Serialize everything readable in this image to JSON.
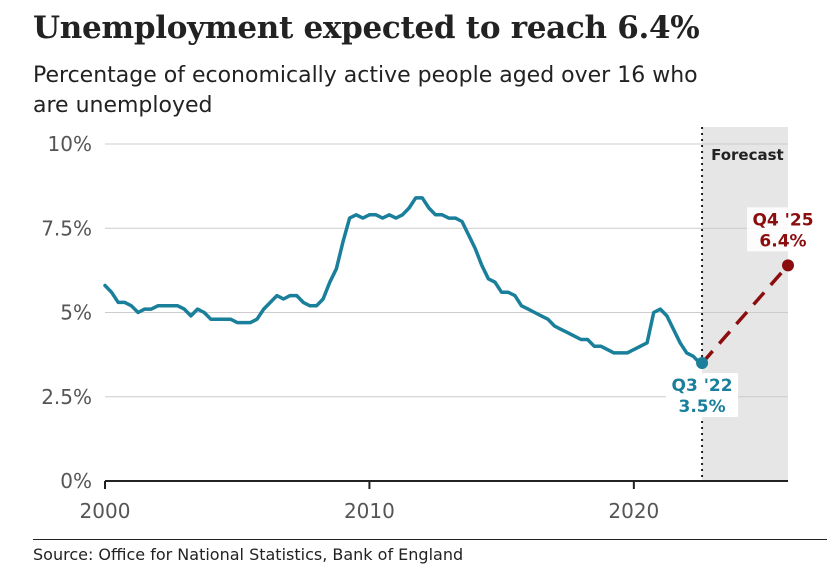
{
  "title": "Unemployment expected to reach 6.4%",
  "subtitle": "Percentage of economically active people aged over 16 who are unemployed",
  "source": "Source: Office for National Statistics, Bank of England",
  "colors": {
    "actual": "#1a7f9a",
    "forecast": "#8b0d0d",
    "forecast_shade": "#e6e6e6",
    "grid": "#cccccc",
    "axis": "#222222"
  },
  "chart_data": {
    "type": "line",
    "title": "Unemployment expected to reach 6.4%",
    "ylabel": "",
    "xlabel": "",
    "xlim": [
      2000,
      2025.83
    ],
    "ylim": [
      0,
      10
    ],
    "y_ticks": [
      {
        "value": 0,
        "label": "0%"
      },
      {
        "value": 2.5,
        "label": "2.5%"
      },
      {
        "value": 5,
        "label": "5%"
      },
      {
        "value": 7.5,
        "label": "7.5%"
      },
      {
        "value": 10,
        "label": "10%"
      }
    ],
    "x_ticks": [
      {
        "value": 2000,
        "label": "2000"
      },
      {
        "value": 2010,
        "label": "2010"
      },
      {
        "value": 2020,
        "label": "2020"
      }
    ],
    "grid": true,
    "forecast_region": {
      "start": 2022.58,
      "end": 2025.83,
      "label": "Forecast"
    },
    "series": [
      {
        "kind": "actual",
        "color": "#1a7f9a",
        "x": [
          2000.0,
          2000.25,
          2000.5,
          2000.75,
          2001.0,
          2001.25,
          2001.5,
          2001.75,
          2002.0,
          2002.25,
          2002.5,
          2002.75,
          2003.0,
          2003.25,
          2003.5,
          2003.75,
          2004.0,
          2004.25,
          2004.5,
          2004.75,
          2005.0,
          2005.25,
          2005.5,
          2005.75,
          2006.0,
          2006.25,
          2006.5,
          2006.75,
          2007.0,
          2007.25,
          2007.5,
          2007.75,
          2008.0,
          2008.25,
          2008.5,
          2008.75,
          2009.0,
          2009.25,
          2009.5,
          2009.75,
          2010.0,
          2010.25,
          2010.5,
          2010.75,
          2011.0,
          2011.25,
          2011.5,
          2011.75,
          2012.0,
          2012.25,
          2012.5,
          2012.75,
          2013.0,
          2013.25,
          2013.5,
          2013.75,
          2014.0,
          2014.25,
          2014.5,
          2014.75,
          2015.0,
          2015.25,
          2015.5,
          2015.75,
          2016.0,
          2016.25,
          2016.5,
          2016.75,
          2017.0,
          2017.25,
          2017.5,
          2017.75,
          2018.0,
          2018.25,
          2018.5,
          2018.75,
          2019.0,
          2019.25,
          2019.5,
          2019.75,
          2020.0,
          2020.25,
          2020.5,
          2020.75,
          2021.0,
          2021.25,
          2021.5,
          2021.75,
          2022.0,
          2022.25,
          2022.5
        ],
        "values": [
          5.8,
          5.6,
          5.3,
          5.3,
          5.2,
          5.0,
          5.1,
          5.1,
          5.2,
          5.2,
          5.2,
          5.2,
          5.1,
          4.9,
          5.1,
          5.0,
          4.8,
          4.8,
          4.8,
          4.8,
          4.7,
          4.7,
          4.7,
          4.8,
          5.1,
          5.3,
          5.5,
          5.4,
          5.5,
          5.5,
          5.3,
          5.2,
          5.2,
          5.4,
          5.9,
          6.3,
          7.1,
          7.8,
          7.9,
          7.8,
          7.9,
          7.9,
          7.8,
          7.9,
          7.8,
          7.9,
          8.1,
          8.4,
          8.4,
          8.1,
          7.9,
          7.9,
          7.8,
          7.8,
          7.7,
          7.3,
          6.9,
          6.4,
          6.0,
          5.9,
          5.6,
          5.6,
          5.5,
          5.2,
          5.1,
          5.0,
          4.9,
          4.8,
          4.6,
          4.5,
          4.4,
          4.3,
          4.2,
          4.2,
          4.0,
          4.0,
          3.9,
          3.8,
          3.8,
          3.8,
          3.9,
          4.0,
          4.1,
          5.0,
          5.1,
          4.9,
          4.5,
          4.1,
          3.8,
          3.7,
          3.5
        ]
      },
      {
        "kind": "forecast",
        "color": "#8b0d0d",
        "x": [
          2022.58,
          2025.83
        ],
        "values": [
          3.5,
          6.4
        ]
      }
    ],
    "annotations": [
      {
        "line1": "Q3 '22",
        "line2": "3.5%",
        "x": 2022.58,
        "y": 3.5,
        "color": "#1a7f9a"
      },
      {
        "line1": "Q4 '25",
        "line2": "6.4%",
        "x": 2025.83,
        "y": 6.4,
        "color": "#8b0d0d"
      }
    ]
  }
}
